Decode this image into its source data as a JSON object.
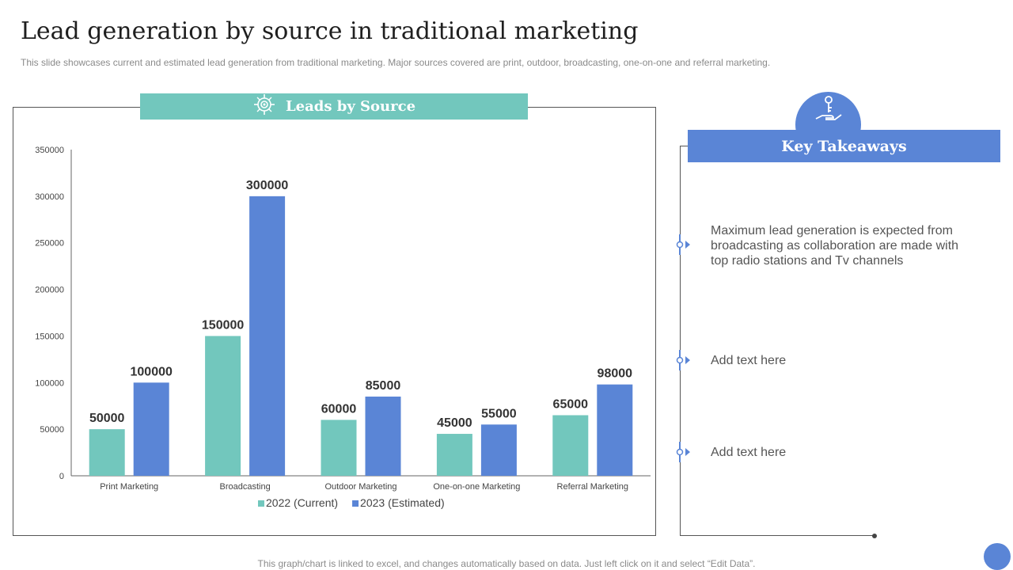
{
  "page": {
    "title": "Lead generation by source in traditional marketing",
    "subtitle": "This slide showcases current and estimated lead generation from traditional marketing. Major sources covered are print, outdoor, broadcasting, one-on-one and referral marketing.",
    "footer": "This graph/chart is linked to excel,  and changes automatically based on data. Just left click on it and select “Edit Data”."
  },
  "chart_header": {
    "title": "Leads by Source",
    "icon": "target-icon"
  },
  "chart_data": {
    "type": "bar",
    "categories": [
      "Print Marketing",
      "Broadcasting",
      "Outdoor Marketing",
      "One-on-one Marketing",
      "Referral Marketing"
    ],
    "series": [
      {
        "name": "2022 (Current)",
        "values": [
          50000,
          150000,
          60000,
          45000,
          65000
        ],
        "color": "#72c7bd"
      },
      {
        "name": "2023 (Estimated)",
        "values": [
          100000,
          300000,
          85000,
          55000,
          98000
        ],
        "color": "#5a85d6"
      }
    ],
    "ylim": [
      0,
      350000
    ],
    "yticks": [
      0,
      50000,
      100000,
      150000,
      200000,
      250000,
      300000,
      350000
    ],
    "grid": false,
    "legend": "bottom-center",
    "data_labels": true
  },
  "takeaways": {
    "title": "Key Takeaways",
    "badge_icon": "hand-key-icon",
    "items": [
      {
        "text": "Maximum lead generation is expected from broadcasting as collaboration are made with top radio stations and Tv channels"
      },
      {
        "text": "Add text here"
      },
      {
        "text": "Add text here"
      }
    ]
  }
}
